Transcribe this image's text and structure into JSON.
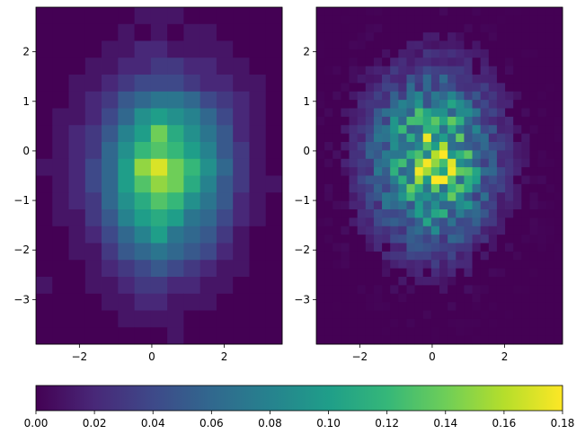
{
  "chart_data": [
    {
      "type": "heatmap",
      "title": "",
      "xlabel": "",
      "ylabel": "",
      "xlim": [
        -3.2,
        3.6
      ],
      "ylim": [
        -3.9,
        2.9
      ],
      "xticks": [
        "−2",
        "0",
        "2"
      ],
      "xtick_values": [
        -2,
        0,
        2
      ],
      "yticks": [
        "2",
        "1",
        "0",
        "−1",
        "−2",
        "−3"
      ],
      "ytick_values": [
        2,
        1,
        0,
        -1,
        -2,
        -3
      ],
      "grid": false,
      "nx": 15,
      "ny": 20,
      "cells": [
        [
          0.0,
          0.0,
          0.0,
          0.0,
          0.0,
          0.0,
          0.01,
          0.01,
          0.01,
          0.0,
          0.0,
          0.0,
          0.0,
          0.0,
          0.0
        ],
        [
          0.0,
          0.0,
          0.0,
          0.0,
          0.0,
          0.01,
          0.0,
          0.01,
          0.0,
          0.01,
          0.01,
          0.0,
          0.0,
          0.0,
          0.0
        ],
        [
          0.0,
          0.0,
          0.0,
          0.0,
          0.01,
          0.01,
          0.02,
          0.02,
          0.01,
          0.01,
          0.01,
          0.01,
          0.0,
          0.0,
          0.0
        ],
        [
          0.0,
          0.0,
          0.0,
          0.01,
          0.01,
          0.02,
          0.02,
          0.03,
          0.03,
          0.02,
          0.02,
          0.01,
          0.01,
          0.0,
          0.0
        ],
        [
          0.0,
          0.0,
          0.01,
          0.01,
          0.02,
          0.03,
          0.04,
          0.04,
          0.04,
          0.03,
          0.02,
          0.02,
          0.01,
          0.01,
          0.0
        ],
        [
          0.0,
          0.0,
          0.01,
          0.02,
          0.03,
          0.05,
          0.06,
          0.07,
          0.07,
          0.06,
          0.04,
          0.03,
          0.02,
          0.01,
          0.0
        ],
        [
          0.0,
          0.01,
          0.01,
          0.02,
          0.04,
          0.06,
          0.09,
          0.1,
          0.09,
          0.08,
          0.06,
          0.04,
          0.02,
          0.01,
          0.0
        ],
        [
          0.0,
          0.01,
          0.02,
          0.03,
          0.05,
          0.08,
          0.1,
          0.14,
          0.11,
          0.09,
          0.07,
          0.05,
          0.02,
          0.01,
          0.0
        ],
        [
          0.0,
          0.01,
          0.02,
          0.03,
          0.06,
          0.09,
          0.12,
          0.13,
          0.12,
          0.1,
          0.08,
          0.05,
          0.03,
          0.01,
          0.0
        ],
        [
          0.01,
          0.01,
          0.02,
          0.04,
          0.06,
          0.1,
          0.15,
          0.17,
          0.14,
          0.12,
          0.09,
          0.06,
          0.03,
          0.01,
          0.0
        ],
        [
          0.0,
          0.01,
          0.02,
          0.04,
          0.06,
          0.1,
          0.13,
          0.15,
          0.14,
          0.11,
          0.08,
          0.05,
          0.03,
          0.01,
          0.01
        ],
        [
          0.0,
          0.01,
          0.02,
          0.03,
          0.06,
          0.09,
          0.11,
          0.13,
          0.12,
          0.09,
          0.07,
          0.05,
          0.02,
          0.01,
          0.0
        ],
        [
          0.0,
          0.01,
          0.01,
          0.03,
          0.05,
          0.08,
          0.1,
          0.11,
          0.1,
          0.07,
          0.06,
          0.04,
          0.02,
          0.01,
          0.0
        ],
        [
          0.0,
          0.0,
          0.01,
          0.02,
          0.04,
          0.06,
          0.08,
          0.1,
          0.07,
          0.06,
          0.05,
          0.03,
          0.01,
          0.0,
          0.0
        ],
        [
          0.0,
          0.0,
          0.01,
          0.01,
          0.03,
          0.05,
          0.06,
          0.07,
          0.06,
          0.05,
          0.04,
          0.02,
          0.01,
          0.0,
          0.0
        ],
        [
          0.0,
          0.0,
          0.0,
          0.01,
          0.02,
          0.03,
          0.04,
          0.05,
          0.04,
          0.03,
          0.02,
          0.01,
          0.01,
          0.0,
          0.0
        ],
        [
          0.01,
          0.0,
          0.0,
          0.01,
          0.01,
          0.02,
          0.03,
          0.03,
          0.02,
          0.02,
          0.01,
          0.01,
          0.0,
          0.0,
          0.0
        ],
        [
          0.0,
          0.0,
          0.0,
          0.0,
          0.01,
          0.01,
          0.02,
          0.02,
          0.01,
          0.01,
          0.01,
          0.0,
          0.0,
          0.0,
          0.0
        ],
        [
          0.0,
          0.0,
          0.0,
          0.0,
          0.0,
          0.01,
          0.01,
          0.01,
          0.01,
          0.0,
          0.0,
          0.0,
          0.0,
          0.0,
          0.0
        ],
        [
          0.0,
          0.0,
          0.0,
          0.0,
          0.0,
          0.0,
          0.0,
          0.0,
          0.01,
          0.0,
          0.0,
          0.0,
          0.0,
          0.0,
          0.0
        ]
      ]
    },
    {
      "type": "heatmap",
      "title": "",
      "xlabel": "",
      "ylabel": "",
      "xlim": [
        -3.2,
        3.6
      ],
      "ylim": [
        -3.9,
        2.9
      ],
      "xticks": [
        "−2",
        "0",
        "2"
      ],
      "xtick_values": [
        -2,
        0,
        2
      ],
      "yticks": [
        "2",
        "1",
        "0",
        "−1",
        "−2",
        "−3"
      ],
      "ytick_values": [
        2,
        1,
        0,
        -1,
        -2,
        -3
      ],
      "grid": false,
      "nx": 30,
      "ny": 40,
      "peak_value": 0.18,
      "base_peak": 0.17
    }
  ],
  "colorbar": {
    "min": 0.0,
    "max": 0.18,
    "colormap": "viridis",
    "ticks": [
      "0.00",
      "0.02",
      "0.04",
      "0.06",
      "0.08",
      "0.10",
      "0.12",
      "0.14",
      "0.16",
      "0.18"
    ],
    "tick_values": [
      0.0,
      0.02,
      0.04,
      0.06,
      0.08,
      0.1,
      0.12,
      0.14,
      0.16,
      0.18
    ]
  },
  "colors": {
    "viridis_stops": [
      "#440154",
      "#482878",
      "#3e4989",
      "#31688e",
      "#26828e",
      "#1f9e89",
      "#35b779",
      "#6ece58",
      "#b5de2b",
      "#fde725"
    ]
  }
}
